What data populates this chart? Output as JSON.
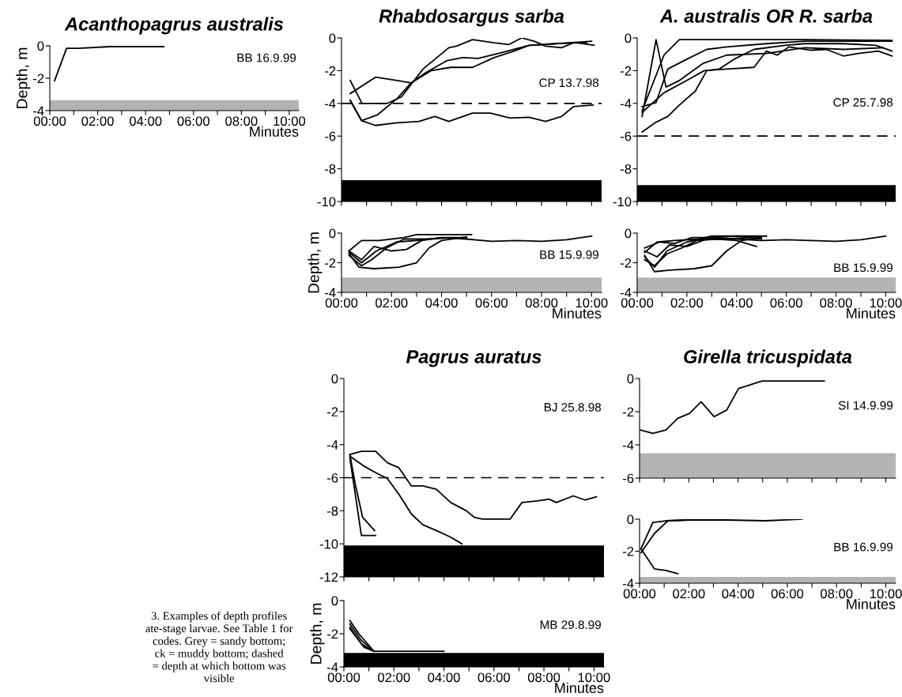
{
  "chart_data": [
    {
      "type": "line",
      "title": "Acanthopagrus australis",
      "ylabel": "Depth, m",
      "xlabel": "Minutes",
      "annotations": [
        "BB 16.9.99"
      ],
      "xlim": [
        0,
        10.4
      ],
      "ylim": [
        -4,
        0
      ],
      "yticks": [
        -4,
        -2,
        0
      ],
      "xticks": [
        {
          "value": 0,
          "label": "00:00"
        },
        {
          "value": 1,
          "label": null
        },
        {
          "value": 2,
          "label": "02:00"
        },
        {
          "value": 3,
          "label": null
        },
        {
          "value": 4,
          "label": "04:00"
        },
        {
          "value": 5,
          "label": null
        },
        {
          "value": 6,
          "label": "06:00"
        },
        {
          "value": 7,
          "label": null
        },
        {
          "value": 8,
          "label": "08:00"
        },
        {
          "value": 9,
          "label": null
        },
        {
          "value": 10,
          "label": "10:00"
        }
      ],
      "bands": [
        {
          "axis": "y",
          "from": -4,
          "to": -3.35,
          "color": "#b3b3b3"
        }
      ],
      "series": [
        {
          "color": "#000000",
          "x": [
            0.2,
            0.7,
            1.2,
            2.5,
            4.76
          ],
          "values": [
            -2.15,
            -0.15,
            -0.15,
            -0.05,
            -0.05
          ]
        }
      ]
    },
    {
      "type": "line",
      "title": "Rhabdosargus sarba",
      "annotations": [
        "CP 13.7.98"
      ],
      "xlim": [
        0,
        10.4
      ],
      "ylim": [
        -10,
        0
      ],
      "yticks": [
        -10,
        -8,
        -6,
        -4,
        -2,
        0
      ],
      "tick_labels": "y",
      "xticks": [
        0,
        1,
        2,
        3,
        4,
        5,
        6,
        7,
        8,
        9,
        10
      ],
      "ref_lines": [
        {
          "axis": "y",
          "value": -4,
          "line_style": "dashed",
          "color": "#000000"
        }
      ],
      "bands": [
        {
          "axis": "y",
          "from": -10,
          "to": -8.7,
          "color": "#000000"
        }
      ],
      "series": [
        {
          "color": "#000000",
          "x": [
            0.35,
            0.82,
            1.83,
            2.4,
            3.26,
            4.29,
            4.6,
            5.24,
            6.1,
            6.7,
            7.2,
            7.7,
            8.16,
            8.8,
            9.27,
            9.8
          ],
          "values": [
            -2.6,
            -4,
            -4,
            -3.6,
            -1.9,
            -0.6,
            -0.5,
            -0.1,
            -0.3,
            -0.4,
            0,
            -0.2,
            -0.5,
            -0.6,
            -0.3,
            -0.3
          ]
        },
        {
          "color": "#000000",
          "x": [
            0.35,
            1.36,
            2.23,
            2.78,
            3.34,
            4.2,
            4.84,
            5.47,
            6.27,
            6.9,
            7.5,
            8.16,
            9.1,
            10.0
          ],
          "values": [
            -3.4,
            -2.4,
            -2.6,
            -2.75,
            -2.15,
            -1.4,
            -1.2,
            -1.25,
            -0.95,
            -0.7,
            -0.45,
            -0.4,
            -0.3,
            -0.2
          ]
        },
        {
          "color": "#000000",
          "x": [
            0.35,
            0.8,
            1.44,
            2.23,
            2.78,
            3.58,
            4.37,
            5.24,
            6.1,
            6.9,
            7.5,
            8.5,
            9.4,
            10.1
          ],
          "values": [
            -3.8,
            -5.05,
            -4.7,
            -3.7,
            -2.75,
            -2.0,
            -1.8,
            -1.8,
            -1.2,
            -0.8,
            -0.45,
            -0.35,
            -0.3,
            -0.45
          ]
        },
        {
          "color": "#000000",
          "x": [
            0.35,
            0.8,
            1.36,
            2.15,
            3.1,
            3.73,
            4.29,
            5.24,
            5.95,
            6.74,
            7.5,
            8.16,
            8.8,
            9.27,
            10.06
          ],
          "values": [
            -3.85,
            -5.05,
            -5.35,
            -5.2,
            -5.1,
            -4.8,
            -5.1,
            -4.6,
            -4.6,
            -4.9,
            -4.85,
            -5.1,
            -4.8,
            -4.2,
            -4.1
          ]
        }
      ]
    },
    {
      "type": "line",
      "ylabel": "Depth, m",
      "xlabel": "Minutes",
      "annotations": [
        "BB 15.9.99"
      ],
      "xlim": [
        0,
        10.4
      ],
      "ylim": [
        -4,
        0
      ],
      "yticks": [
        -4,
        -2,
        0
      ],
      "xticks": [
        {
          "value": 0,
          "label": "00:00"
        },
        {
          "value": 1,
          "label": null
        },
        {
          "value": 2,
          "label": "02:00"
        },
        {
          "value": 3,
          "label": null
        },
        {
          "value": 4,
          "label": "04:00"
        },
        {
          "value": 5,
          "label": null
        },
        {
          "value": 6,
          "label": "06:00"
        },
        {
          "value": 7,
          "label": null
        },
        {
          "value": 8,
          "label": "08:00"
        },
        {
          "value": 9,
          "label": null
        },
        {
          "value": 10,
          "label": "10:00"
        }
      ],
      "bands": [
        {
          "axis": "y",
          "from": -4,
          "to": -3,
          "color": "#b3b3b3"
        }
      ],
      "series": [
        {
          "color": "#000000",
          "x": [
            0.3,
            0.8,
            1.5,
            2.5,
            3.0,
            4.0,
            5.2
          ],
          "values": [
            -1.2,
            -0.5,
            -0.5,
            -0.3,
            -0.1,
            -0.1,
            -0.1
          ]
        },
        {
          "color": "#000000",
          "x": [
            0.3,
            0.8,
            1.4,
            2.2,
            3.0,
            4.0,
            5.0,
            6.0,
            7.0,
            8.0,
            9.0,
            10.0
          ],
          "values": [
            -1.3,
            -2.0,
            -1.2,
            -0.6,
            -0.5,
            -0.3,
            -0.4,
            -0.55,
            -0.5,
            -0.55,
            -0.45,
            -0.2
          ]
        },
        {
          "color": "#000000",
          "x": [
            0.3,
            0.7,
            1.3,
            2.3,
            3.0,
            3.5,
            4.0,
            5.0
          ],
          "values": [
            -1.4,
            -2.3,
            -2.4,
            -2.3,
            -2.0,
            -1.0,
            -0.5,
            -0.25
          ]
        },
        {
          "color": "#000000",
          "x": [
            0.3,
            0.8,
            1.3,
            2.0,
            2.6,
            3.2,
            4.0,
            5.0
          ],
          "values": [
            -1.2,
            -1.8,
            -0.9,
            -1.2,
            -1.1,
            -0.5,
            -0.3,
            -0.3
          ]
        },
        {
          "color": "#000000",
          "x": [
            0.3,
            0.8,
            1.2,
            1.8,
            2.5,
            3.5,
            4.5,
            5.0
          ],
          "values": [
            -1.5,
            -2.2,
            -1.8,
            -1.0,
            -0.4,
            -0.4,
            -0.3,
            -0.35
          ]
        }
      ]
    },
    {
      "type": "line",
      "title": "A. australis OR R. sarba",
      "annotations": [
        "CP 25.7.98"
      ],
      "xlim": [
        0,
        10.4
      ],
      "ylim": [
        -10,
        0
      ],
      "yticks": [
        -10,
        -8,
        -6,
        -4,
        -2,
        0
      ],
      "tick_labels": "y",
      "xticks": [
        0,
        1,
        2,
        3,
        4,
        5,
        6,
        7,
        8,
        9,
        10
      ],
      "ref_lines": [
        {
          "axis": "y",
          "value": -6,
          "line_style": "dashed",
          "color": "#000000"
        }
      ],
      "bands": [
        {
          "axis": "y",
          "from": -10,
          "to": -9,
          "color": "#000000"
        }
      ],
      "series": [
        {
          "color": "#000000",
          "x": [
            0.2,
            0.76,
            1.16,
            1.7,
            2.66,
            3.6,
            5.2,
            6.75,
            8.33,
            9.9
          ],
          "values": [
            -4.8,
            -0.1,
            -3.0,
            -2.6,
            -1.55,
            -1.05,
            -0.95,
            -0.6,
            -0.7,
            -0.6
          ]
        },
        {
          "color": "#000000",
          "x": [
            0.2,
            1.08,
            1.7,
            3.6,
            6.75,
            10.25
          ],
          "values": [
            -4.45,
            -1.05,
            -0.1,
            -0.1,
            -0.1,
            -0.15
          ]
        },
        {
          "color": "#000000",
          "x": [
            0.2,
            0.76,
            1.23,
            2.0,
            2.8,
            3.6,
            5.2,
            6.75,
            8.3,
            10.25
          ],
          "values": [
            -4.2,
            -3.95,
            -1.9,
            -1.3,
            -0.7,
            -0.55,
            -0.35,
            -0.2,
            -0.2,
            -0.2
          ]
        },
        {
          "color": "#000000",
          "x": [
            0.2,
            1.08,
            2.0,
            2.7,
            3.6,
            4.7,
            5.2,
            5.63,
            6.1,
            7.0,
            7.6,
            8.3,
            8.9,
            9.7,
            10.25
          ],
          "values": [
            -4.55,
            -3.35,
            -2.6,
            -2.0,
            -1.9,
            -1.8,
            -0.8,
            -1.05,
            -0.55,
            -0.75,
            -0.7,
            -1.1,
            -0.95,
            -0.8,
            -1.1
          ]
        },
        {
          "color": "#000000",
          "x": [
            0.2,
            0.76,
            1.23,
            1.7,
            2.34,
            2.8,
            3.3,
            3.9,
            4.7,
            5.95,
            6.75,
            8.3,
            9.6,
            10.25
          ],
          "values": [
            -5.75,
            -5.15,
            -4.8,
            -4.1,
            -3.25,
            -2.0,
            -1.9,
            -1.3,
            -0.7,
            -0.45,
            -0.35,
            -0.35,
            -0.45,
            -0.8
          ]
        }
      ]
    },
    {
      "type": "line",
      "xlabel": "Minutes",
      "annotations": [
        "BB 15.9.99"
      ],
      "xlim": [
        0,
        10.4
      ],
      "ylim": [
        -4,
        0
      ],
      "yticks": [
        -4,
        -2,
        0
      ],
      "xticks": [
        {
          "value": 0,
          "label": "00:00"
        },
        {
          "value": 1,
          "label": null
        },
        {
          "value": 2,
          "label": "02:00"
        },
        {
          "value": 3,
          "label": null
        },
        {
          "value": 4,
          "label": "04:00"
        },
        {
          "value": 5,
          "label": null
        },
        {
          "value": 6,
          "label": "06:00"
        },
        {
          "value": 7,
          "label": null
        },
        {
          "value": 8,
          "label": "08:00"
        },
        {
          "value": 9,
          "label": null
        },
        {
          "value": 10,
          "label": "10:00"
        }
      ],
      "bands": [
        {
          "axis": "y",
          "from": -4,
          "to": -3,
          "color": "#b3b3b3"
        }
      ],
      "series": [
        {
          "color": "#000000",
          "x": [
            0.3,
            0.8,
            1.5,
            2.5,
            3.0,
            4.0,
            5.0,
            6.0,
            7.0,
            8.0,
            9.0,
            10.0
          ],
          "values": [
            -1.3,
            -0.6,
            -0.5,
            -0.4,
            -0.3,
            -0.4,
            -0.5,
            -0.45,
            -0.5,
            -0.55,
            -0.45,
            -0.2
          ]
        },
        {
          "color": "#000000",
          "x": [
            0.3,
            0.7,
            1.2,
            2.0,
            3.0,
            4.0,
            5.2
          ],
          "values": [
            -1.6,
            -2.3,
            -1.2,
            -0.6,
            -0.2,
            -0.2,
            -0.2
          ]
        },
        {
          "color": "#000000",
          "x": [
            0.3,
            0.7,
            1.3,
            2.3,
            3.0,
            3.6,
            4.2,
            5.0
          ],
          "values": [
            -1.5,
            -2.6,
            -2.5,
            -2.4,
            -2.2,
            -1.2,
            -0.5,
            -0.3
          ]
        },
        {
          "color": "#000000",
          "x": [
            0.3,
            0.8,
            1.3,
            2.0,
            2.8,
            3.5,
            4.5,
            5.0
          ],
          "values": [
            -1.2,
            -1.6,
            -0.8,
            -0.9,
            -0.4,
            -0.4,
            -0.3,
            -0.4
          ]
        },
        {
          "color": "#000000",
          "x": [
            0.3,
            0.7,
            1.2,
            1.8,
            2.4,
            3.2,
            4.0,
            4.8
          ],
          "values": [
            -1.8,
            -2.2,
            -1.4,
            -1.0,
            -0.5,
            -0.4,
            -0.5,
            -0.9
          ]
        },
        {
          "color": "#000000",
          "x": [
            0.3,
            0.9,
            1.5,
            2.2,
            3.0,
            4.0,
            5.0
          ],
          "values": [
            -1.0,
            -0.6,
            -0.7,
            -0.3,
            -0.3,
            -0.2,
            -0.3
          ]
        }
      ]
    },
    {
      "type": "line",
      "title": "Pagrus auratus",
      "annotations": [
        "BJ 25.8.98"
      ],
      "xlim": [
        0,
        10.4
      ],
      "ylim": [
        -12,
        0
      ],
      "yticks": [
        -12,
        -10,
        -8,
        -6,
        -4,
        -2,
        0
      ],
      "tick_labels": "y",
      "xticks": [
        0,
        1,
        2,
        3,
        4,
        5,
        6,
        7,
        8,
        9,
        10
      ],
      "ref_lines": [
        {
          "axis": "y",
          "value": -6,
          "line_style": "dashed",
          "color": "#000000"
        }
      ],
      "bands": [
        {
          "axis": "y",
          "from": -12,
          "to": -10.1,
          "color": "#000000"
        }
      ],
      "series": [
        {
          "color": "#000000",
          "x": [
            0.24,
            0.7,
            1.27,
            1.74,
            2.2,
            2.7,
            3.16,
            3.7,
            4.27,
            4.9,
            5.22,
            5.54,
            6.65,
            7.12,
            7.75,
            8.2,
            8.5,
            9.17,
            9.65,
            10.1
          ],
          "values": [
            -4.6,
            -4.4,
            -4.4,
            -5.1,
            -5.4,
            -6.5,
            -6.5,
            -6.7,
            -7.5,
            -8.0,
            -8.4,
            -8.5,
            -8.5,
            -7.5,
            -7.4,
            -7.3,
            -7.5,
            -7.1,
            -7.35,
            -7.15
          ]
        },
        {
          "color": "#000000",
          "x": [
            0.24,
            0.8,
            1.34,
            1.74,
            2.2,
            2.7,
            3.16,
            3.7,
            4.27,
            4.72
          ],
          "values": [
            -4.7,
            -5.3,
            -5.75,
            -6.05,
            -7.0,
            -8.2,
            -8.85,
            -9.2,
            -9.6,
            -10.0
          ]
        },
        {
          "color": "#000000",
          "x": [
            0.24,
            0.47,
            0.75,
            1.23
          ],
          "values": [
            -4.6,
            -6.5,
            -8.4,
            -9.2
          ]
        },
        {
          "color": "#000000",
          "x": [
            0.24,
            0.7,
            1.27
          ],
          "values": [
            -4.8,
            -9.5,
            -9.5
          ]
        }
      ]
    },
    {
      "type": "line",
      "ylabel": "Depth, m",
      "xlabel": "Minutes",
      "annotations": [
        "MB 29.8.99"
      ],
      "xlim": [
        0,
        10.4
      ],
      "ylim": [
        -4,
        0
      ],
      "yticks": [
        -4,
        -2,
        0
      ],
      "xticks": [
        {
          "value": 0,
          "label": "00:00"
        },
        {
          "value": 1,
          "label": null
        },
        {
          "value": 2,
          "label": "02:00"
        },
        {
          "value": 3,
          "label": null
        },
        {
          "value": 4,
          "label": "04:00"
        },
        {
          "value": 5,
          "label": null
        },
        {
          "value": 6,
          "label": "06:00"
        },
        {
          "value": 7,
          "label": null
        },
        {
          "value": 8,
          "label": "08:00"
        },
        {
          "value": 9,
          "label": null
        },
        {
          "value": 10,
          "label": "10:00"
        }
      ],
      "bands": [
        {
          "axis": "y",
          "from": -4,
          "to": -3.15,
          "color": "#000000"
        }
      ],
      "series": [
        {
          "color": "#000000",
          "x": [
            0.24,
            0.6,
            1.2
          ],
          "values": [
            -1.2,
            -2.0,
            -3.05
          ]
        },
        {
          "color": "#000000",
          "x": [
            0.24,
            0.7,
            1.2
          ],
          "values": [
            -1.4,
            -2.4,
            -3.05
          ]
        },
        {
          "color": "#000000",
          "x": [
            0.24,
            0.7,
            1.1
          ],
          "values": [
            -1.6,
            -2.6,
            -3.0
          ]
        },
        {
          "color": "#000000",
          "x": [
            0.24,
            0.8,
            1.2,
            4.0
          ],
          "values": [
            -1.7,
            -2.8,
            -3.05,
            -3.05
          ]
        }
      ]
    },
    {
      "type": "line",
      "title": "Girella tricuspidata",
      "annotations": [
        "SI 14.9.99"
      ],
      "xlim": [
        0,
        10.4
      ],
      "ylim": [
        -6,
        0
      ],
      "yticks": [
        -6,
        -4,
        -2,
        0
      ],
      "tick_labels": "y",
      "xticks": [
        0,
        1,
        2,
        3,
        4,
        5,
        6,
        7,
        8,
        9,
        10
      ],
      "bands": [
        {
          "axis": "y",
          "from": -6,
          "to": -4.5,
          "color": "#b3b3b3"
        }
      ],
      "series": [
        {
          "color": "#000000",
          "x": [
            0.03,
            0.54,
            1.07,
            1.55,
            2.03,
            2.5,
            3.03,
            3.54,
            4.02,
            4.98,
            7.5
          ],
          "values": [
            -3.1,
            -3.3,
            -3.1,
            -2.4,
            -2.1,
            -1.4,
            -2.3,
            -1.9,
            -0.6,
            -0.15,
            -0.15
          ]
        }
      ]
    },
    {
      "type": "line",
      "xlabel": "Minutes",
      "annotations": [
        "BB 16.9.99"
      ],
      "xlim": [
        0,
        10.4
      ],
      "ylim": [
        -4,
        0
      ],
      "yticks": [
        -4,
        -2,
        0
      ],
      "xticks": [
        {
          "value": 0,
          "label": "00:00"
        },
        {
          "value": 1,
          "label": null
        },
        {
          "value": 2,
          "label": "02:00"
        },
        {
          "value": 3,
          "label": null
        },
        {
          "value": 4,
          "label": "04:00"
        },
        {
          "value": 5,
          "label": null
        },
        {
          "value": 6,
          "label": "06:00"
        },
        {
          "value": 7,
          "label": null
        },
        {
          "value": 8,
          "label": "08:00"
        },
        {
          "value": 9,
          "label": null
        },
        {
          "value": 10,
          "label": "10:00"
        }
      ],
      "bands": [
        {
          "axis": "y",
          "from": -4,
          "to": -3.6,
          "color": "#b3b3b3"
        }
      ],
      "series": [
        {
          "color": "#000000",
          "x": [
            0.06,
            0.54,
            1.07,
            1.95,
            3.54,
            5.1,
            6.6
          ],
          "values": [
            -1.85,
            -0.2,
            -0.1,
            -0.05,
            -0.05,
            -0.1,
            0
          ]
        },
        {
          "color": "#000000",
          "x": [
            0.06,
            0.6,
            1.15,
            1.95
          ],
          "values": [
            -2.1,
            -0.9,
            -0.1,
            -0.05
          ]
        },
        {
          "color": "#000000",
          "x": [
            0.06,
            0.6,
            1.07,
            1.55
          ],
          "values": [
            -1.85,
            -3.1,
            -3.2,
            -3.4
          ]
        }
      ]
    },
    {
      "type": "other",
      "annotations": [
        "3. Examples of depth profiles\nate-stage larvae. See Table 1 for\ncodes. Grey = sandy bottom;\nck = muddy bottom; dashed\n= depth at which bottom was\nvisible"
      ]
    }
  ]
}
